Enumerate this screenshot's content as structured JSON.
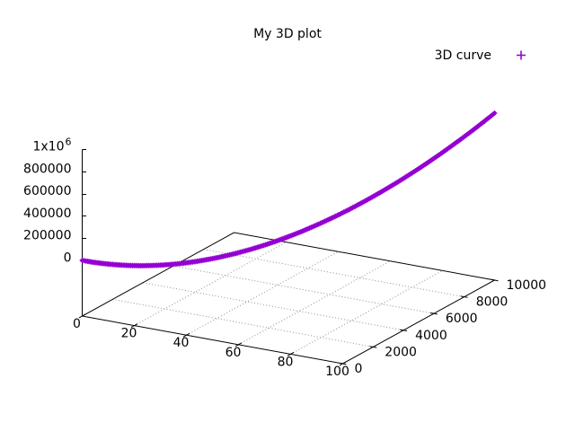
{
  "chart_data": {
    "type": "line",
    "projection": "3d",
    "title": "My 3D plot",
    "legend": [
      {
        "name": "3D curve",
        "marker": "plus",
        "color": "#9400d3"
      }
    ],
    "axes": {
      "x": {
        "min": 0,
        "max": 100,
        "ticks": [
          0,
          20,
          40,
          60,
          80,
          100
        ]
      },
      "y": {
        "min": 0,
        "max": 10000,
        "ticks": [
          0,
          2000,
          4000,
          6000,
          8000,
          10000
        ]
      },
      "z": {
        "min": 0,
        "max": 1000000,
        "ticks": [
          0,
          200000,
          400000,
          600000,
          800000,
          1000000
        ],
        "tick_labels": [
          "0",
          "200000",
          "400000",
          "600000",
          "800000",
          "1x10^6"
        ]
      },
      "grid": true
    },
    "series": [
      {
        "name": "3D curve",
        "color": "#9400d3",
        "marker": "plus",
        "formula": {
          "x": "t",
          "y": "t^2",
          "z": "t^3",
          "t_min": 0,
          "t_max": 100
        },
        "points": [
          [
            0,
            0,
            0
          ],
          [
            2,
            4,
            8
          ],
          [
            4,
            16,
            64
          ],
          [
            6,
            36,
            216
          ],
          [
            8,
            64,
            512
          ],
          [
            10,
            100,
            1000
          ],
          [
            12,
            144,
            1728
          ],
          [
            14,
            196,
            2744
          ],
          [
            16,
            256,
            4096
          ],
          [
            18,
            324,
            5832
          ],
          [
            20,
            400,
            8000
          ],
          [
            22,
            484,
            10648
          ],
          [
            24,
            576,
            13824
          ],
          [
            26,
            676,
            17576
          ],
          [
            28,
            784,
            21952
          ],
          [
            30,
            900,
            27000
          ],
          [
            32,
            1024,
            32768
          ],
          [
            34,
            1156,
            39304
          ],
          [
            36,
            1296,
            46656
          ],
          [
            38,
            1444,
            54872
          ],
          [
            40,
            1600,
            64000
          ],
          [
            42,
            1764,
            74088
          ],
          [
            44,
            1936,
            85184
          ],
          [
            46,
            2116,
            97336
          ],
          [
            48,
            2304,
            110592
          ],
          [
            50,
            2500,
            125000
          ],
          [
            52,
            2704,
            140608
          ],
          [
            54,
            2916,
            157464
          ],
          [
            56,
            3136,
            175616
          ],
          [
            58,
            3364,
            195112
          ],
          [
            60,
            3600,
            216000
          ],
          [
            62,
            3844,
            238328
          ],
          [
            64,
            4096,
            262144
          ],
          [
            66,
            4356,
            287496
          ],
          [
            68,
            4624,
            314432
          ],
          [
            70,
            4900,
            343000
          ],
          [
            72,
            5184,
            373248
          ],
          [
            74,
            5476,
            405224
          ],
          [
            76,
            5776,
            438976
          ],
          [
            78,
            6084,
            474552
          ],
          [
            80,
            6400,
            512000
          ],
          [
            82,
            6724,
            551368
          ],
          [
            84,
            7056,
            592704
          ],
          [
            86,
            7396,
            636056
          ],
          [
            88,
            7744,
            681472
          ],
          [
            90,
            8100,
            729000
          ],
          [
            92,
            8464,
            778688
          ],
          [
            94,
            8836,
            830584
          ],
          [
            96,
            9216,
            884736
          ],
          [
            98,
            9604,
            941192
          ],
          [
            100,
            10000,
            1000000
          ]
        ]
      }
    ]
  }
}
